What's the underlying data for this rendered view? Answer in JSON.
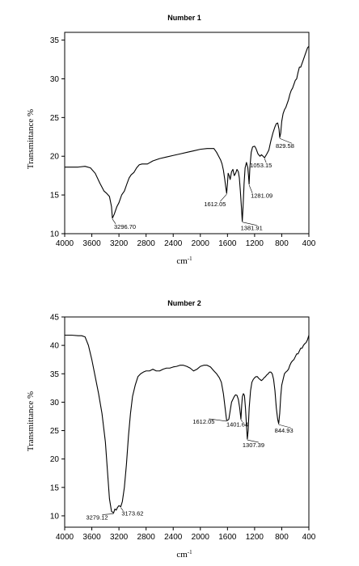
{
  "chart_data": [
    {
      "type": "line",
      "title": "Number 1",
      "xlabel": "cm",
      "xlabel_sup": "-1",
      "ylabel": "Transmittance %",
      "xlim": [
        4000,
        400
      ],
      "ylim": [
        10,
        36
      ],
      "xticks": [
        4000,
        3600,
        3200,
        2800,
        2400,
        2000,
        1600,
        1200,
        800,
        400
      ],
      "yticks": [
        10,
        15,
        20,
        25,
        30,
        35
      ],
      "series": [
        {
          "x": [
            4000,
            3900,
            3800,
            3700,
            3620,
            3550,
            3480,
            3420,
            3380,
            3340,
            3310,
            3296.7,
            3270,
            3230,
            3200,
            3160,
            3120,
            3080,
            3050,
            3020,
            2980,
            2940,
            2900,
            2860,
            2820,
            2780,
            2700,
            2600,
            2500,
            2400,
            2300,
            2200,
            2100,
            2000,
            1900,
            1850,
            1800,
            1760,
            1730,
            1700,
            1680,
            1660,
            1640,
            1625,
            1612.05,
            1600,
            1590,
            1575,
            1560,
            1540,
            1520,
            1500,
            1480,
            1460,
            1440,
            1425,
            1410,
            1395,
            1381.91,
            1370,
            1355,
            1340,
            1320,
            1300,
            1290,
            1281.09,
            1270,
            1250,
            1230,
            1200,
            1180,
            1150,
            1120,
            1100,
            1075,
            1053.15,
            1040,
            1020,
            990,
            960,
            930,
            900,
            880,
            860,
            840,
            829.58,
            815,
            800,
            780,
            760,
            740,
            720,
            700,
            680,
            660,
            640,
            620,
            600,
            580,
            560,
            540,
            520,
            500,
            480,
            460,
            440,
            420,
            400
          ],
          "y": [
            18.6,
            18.6,
            18.6,
            18.7,
            18.5,
            17.8,
            16.5,
            15.5,
            15.2,
            14.8,
            13.5,
            12.0,
            12.5,
            13.5,
            14.0,
            15.0,
            15.5,
            16.5,
            17.2,
            17.6,
            17.9,
            18.5,
            18.9,
            19.0,
            19.0,
            19.0,
            19.4,
            19.7,
            19.9,
            20.1,
            20.3,
            20.5,
            20.7,
            20.9,
            21.0,
            21.0,
            21.0,
            20.5,
            20.0,
            19.5,
            19.0,
            18.2,
            17.0,
            16.0,
            15.2,
            16.5,
            17.8,
            17.5,
            17.0,
            18.0,
            18.3,
            17.5,
            17.8,
            18.3,
            18.0,
            17.2,
            15.5,
            13.5,
            11.6,
            13.5,
            16.5,
            18.5,
            19.2,
            18.5,
            17.5,
            16.4,
            18.5,
            20.5,
            21.2,
            21.3,
            21.0,
            20.3,
            20.0,
            20.2,
            20.0,
            19.8,
            20.0,
            20.3,
            20.8,
            22.0,
            23.0,
            23.8,
            24.2,
            24.3,
            23.5,
            22.4,
            23.0,
            24.5,
            25.5,
            26.0,
            26.3,
            26.8,
            27.3,
            28.0,
            28.5,
            28.8,
            29.3,
            29.8,
            30.0,
            30.8,
            31.5,
            31.5,
            32.0,
            32.5,
            33.0,
            33.5,
            34.0,
            34.2
          ]
        }
      ],
      "annotations": [
        {
          "text": "3296.70",
          "x": 3296.7,
          "y": 12.0
        },
        {
          "text": "1612.05",
          "x": 1612.05,
          "y": 15.2
        },
        {
          "text": "1381.91",
          "x": 1381.91,
          "y": 11.6
        },
        {
          "text": "1281.09",
          "x": 1281.09,
          "y": 16.4
        },
        {
          "text": "1053.15",
          "x": 1053.15,
          "y": 19.8
        },
        {
          "text": "829.58",
          "x": 829.58,
          "y": 22.4
        }
      ]
    },
    {
      "type": "line",
      "title": "Number 2",
      "xlabel": "cm",
      "xlabel_sup": "-1",
      "ylabel": "Transmittance %",
      "xlim": [
        4000,
        400
      ],
      "ylim": [
        8,
        45
      ],
      "xticks": [
        4000,
        3600,
        3200,
        2800,
        2400,
        2000,
        1600,
        1200,
        800,
        400
      ],
      "yticks": [
        10,
        15,
        20,
        25,
        30,
        35,
        40,
        45
      ],
      "series": [
        {
          "x": [
            4000,
            3900,
            3800,
            3750,
            3700,
            3650,
            3600,
            3550,
            3500,
            3450,
            3400,
            3370,
            3340,
            3310,
            3279.12,
            3260,
            3240,
            3220,
            3200,
            3173.62,
            3150,
            3120,
            3090,
            3060,
            3030,
            3000,
            2960,
            2920,
            2880,
            2840,
            2800,
            2750,
            2700,
            2650,
            2600,
            2550,
            2500,
            2450,
            2400,
            2350,
            2300,
            2250,
            2200,
            2150,
            2100,
            2050,
            2000,
            1950,
            1900,
            1850,
            1800,
            1760,
            1720,
            1690,
            1660,
            1640,
            1620,
            1612.05,
            1600,
            1580,
            1560,
            1540,
            1520,
            1500,
            1480,
            1460,
            1440,
            1420,
            1401.64,
            1390,
            1380,
            1365,
            1350,
            1335,
            1320,
            1307.39,
            1295,
            1280,
            1260,
            1240,
            1220,
            1200,
            1180,
            1160,
            1140,
            1120,
            1100,
            1080,
            1060,
            1040,
            1020,
            1000,
            980,
            960,
            940,
            920,
            900,
            880,
            860,
            844.93,
            830,
            815,
            800,
            780,
            760,
            740,
            720,
            700,
            680,
            660,
            640,
            620,
            600,
            580,
            560,
            540,
            520,
            500,
            480,
            460,
            440,
            420,
            400
          ],
          "y": [
            41.8,
            41.8,
            41.7,
            41.7,
            41.5,
            40.0,
            37.5,
            34.5,
            31.5,
            28.0,
            23.0,
            18.0,
            13.0,
            10.8,
            10.5,
            11.2,
            11.0,
            11.5,
            11.8,
            11.6,
            12.5,
            15.0,
            19.0,
            24.0,
            28.0,
            31.0,
            33.0,
            34.5,
            35.0,
            35.3,
            35.5,
            35.5,
            35.8,
            35.5,
            35.5,
            35.8,
            36.0,
            36.0,
            36.2,
            36.3,
            36.5,
            36.5,
            36.3,
            36.0,
            35.5,
            35.8,
            36.3,
            36.5,
            36.5,
            36.2,
            35.5,
            35.0,
            34.3,
            33.5,
            31.5,
            29.5,
            27.5,
            26.8,
            26.8,
            27.0,
            28.5,
            30.0,
            30.5,
            31.0,
            31.3,
            31.2,
            30.5,
            29.0,
            27.0,
            29.5,
            31.0,
            31.5,
            31.2,
            29.0,
            26.0,
            23.5,
            25.0,
            29.0,
            32.0,
            33.5,
            34.0,
            34.3,
            34.5,
            34.5,
            34.2,
            34.0,
            33.8,
            34.0,
            34.3,
            34.5,
            34.8,
            35.0,
            35.3,
            35.3,
            35.0,
            34.0,
            32.0,
            29.0,
            27.0,
            26.2,
            28.0,
            31.0,
            33.0,
            34.0,
            35.0,
            35.3,
            35.5,
            35.8,
            36.5,
            37.0,
            37.3,
            37.5,
            38.0,
            38.5,
            38.5,
            39.0,
            39.5,
            39.5,
            40.0,
            40.3,
            40.5,
            41.0,
            41.8
          ]
        }
      ],
      "annotations": [
        {
          "text": "3279.12",
          "x": 3279.12,
          "y": 10.5
        },
        {
          "text": "3173.62",
          "x": 3173.62,
          "y": 11.6
        },
        {
          "text": "1612.05",
          "x": 1612.05,
          "y": 26.8
        },
        {
          "text": "1401.64",
          "x": 1401.64,
          "y": 27.0
        },
        {
          "text": "1307.39",
          "x": 1307.39,
          "y": 23.5
        },
        {
          "text": "844.93",
          "x": 844.93,
          "y": 26.2
        }
      ]
    }
  ]
}
